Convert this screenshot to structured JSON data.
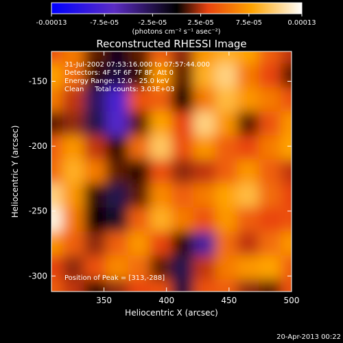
{
  "chart_data": {
    "type": "heatmap",
    "title": "Reconstructed RHESSI Image",
    "xlabel": "Heliocentric X (arcsec)",
    "ylabel": "Heliocentric Y (arcsec)",
    "xlim": [
      308,
      500
    ],
    "ylim": [
      -312,
      -127
    ],
    "x_ticks": [
      350,
      400,
      450,
      500
    ],
    "y_ticks": [
      -150,
      -200,
      -250,
      -300
    ],
    "colorbar": {
      "ticks": [
        "-0.00013",
        "-7.5e-05",
        "-2.5e-05",
        "2.5e-05",
        "7.5e-05",
        "0.00013"
      ],
      "unit_label": "(photons cm⁻² s⁻¹ asec⁻²)",
      "range": [
        -0.00013,
        0.00013
      ],
      "colors": [
        "#0000ff",
        "#5b2cc4",
        "#000000",
        "#e8410f",
        "#ffa300",
        "#ffffff"
      ]
    },
    "annotations": [
      "31-Jul-2002 07:53:16.000 to 07:57:44.000",
      "Detectors: 4F 5F 6F 7F 8F, Att 0",
      "Energy Range: 12.0 - 25.0 keV",
      "Clean     Total counts: 3.03E+03"
    ],
    "peak_label": "Position of Peak = [313,-288]",
    "peak": [
      313,
      -288
    ],
    "grid": [
      [
        0.3,
        0.45,
        0.1,
        -0.05,
        0.1,
        0.35,
        0.15,
        0.55,
        0.65,
        0.6,
        0.35,
        0.2
      ],
      [
        0.6,
        0.4,
        0.05,
        -0.15,
        0.05,
        0.55,
        0.1,
        0.65,
        0.8,
        0.45,
        0.25,
        0.1
      ],
      [
        0.45,
        0.2,
        -0.25,
        -0.6,
        0.3,
        0.35,
        0.0,
        0.45,
        0.7,
        0.55,
        0.45,
        0.3
      ],
      [
        0.1,
        0.15,
        -0.2,
        -0.55,
        0.1,
        0.6,
        0.25,
        0.8,
        0.55,
        0.1,
        0.3,
        0.55
      ],
      [
        0.35,
        0.55,
        0.2,
        0.05,
        0.4,
        0.75,
        0.3,
        0.55,
        0.35,
        0.25,
        0.45,
        0.6
      ],
      [
        0.4,
        0.65,
        0.45,
        0.1,
        0.05,
        0.3,
        0.15,
        0.2,
        0.35,
        0.55,
        0.35,
        0.2
      ],
      [
        0.8,
        0.55,
        0.05,
        -0.2,
        0.1,
        0.5,
        0.35,
        0.45,
        0.6,
        0.7,
        0.4,
        0.25
      ],
      [
        0.95,
        0.45,
        0.0,
        -0.1,
        0.35,
        0.65,
        0.45,
        0.3,
        0.55,
        0.35,
        0.25,
        0.3
      ],
      [
        0.55,
        0.35,
        0.15,
        0.35,
        0.55,
        0.25,
        0.05,
        -0.4,
        0.4,
        0.2,
        0.4,
        0.55
      ],
      [
        0.25,
        0.15,
        0.3,
        0.5,
        0.4,
        0.1,
        -0.2,
        0.2,
        0.45,
        0.55,
        0.6,
        0.35
      ],
      [
        0.35,
        0.2,
        0.05,
        0.15,
        0.25,
        0.3,
        -0.15,
        0.3,
        0.35,
        0.15,
        0.1,
        0.3
      ]
    ]
  },
  "footer_timestamp": "20-Apr-2013 00:22"
}
